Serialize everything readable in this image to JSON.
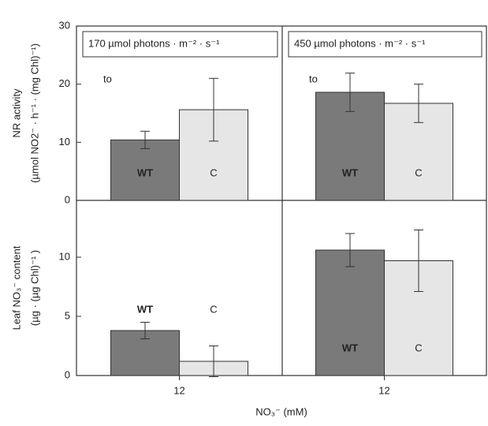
{
  "chart_data": [
    {
      "type": "bar",
      "title": "170 µmol photons · m⁻² · s⁻¹",
      "ylabel": [
        "NR activity",
        "(µmol NO2⁻ · h⁻¹ · (mg Chl)⁻¹)"
      ],
      "annotation": "to",
      "label_position": "inside",
      "categories": [
        null
      ],
      "ylim": [
        0,
        30
      ],
      "yticks": [
        0,
        10,
        20,
        30
      ],
      "series": [
        {
          "name": "WT",
          "color": "#7a7a7a",
          "values": [
            10.4
          ],
          "errors": [
            1.5
          ]
        },
        {
          "name": "C",
          "color": "#e6e6e6",
          "values": [
            15.6
          ],
          "errors": [
            5.4
          ]
        }
      ]
    },
    {
      "type": "bar",
      "title": "450 µmol photons · m⁻² · s⁻¹",
      "annotation": "to",
      "label_position": "inside",
      "categories": [
        null
      ],
      "ylim": [
        0,
        30
      ],
      "series": [
        {
          "name": "WT",
          "color": "#7a7a7a",
          "values": [
            18.6
          ],
          "errors": [
            3.3
          ]
        },
        {
          "name": "C",
          "color": "#e6e6e6",
          "values": [
            16.7
          ],
          "errors": [
            3.3
          ]
        }
      ]
    },
    {
      "type": "bar",
      "ylabel": [
        "Leaf NO₃⁻ content",
        "(µg · (µg Chl)⁻¹ )"
      ],
      "xlabel": "NO₃⁻  (mM)",
      "label_position": "above",
      "categories": [
        "12"
      ],
      "ylim": [
        0,
        14.8
      ],
      "yticks": [
        0,
        5,
        10
      ],
      "series": [
        {
          "name": "WT",
          "color": "#7a7a7a",
          "values": [
            3.8
          ],
          "errors": [
            0.7
          ]
        },
        {
          "name": "C",
          "color": "#e6e6e6",
          "values": [
            1.2
          ],
          "errors": [
            1.3
          ]
        }
      ]
    },
    {
      "type": "bar",
      "label_position": "inside",
      "categories": [
        "12"
      ],
      "ylim": [
        0,
        14.8
      ],
      "series": [
        {
          "name": "WT",
          "color": "#7a7a7a",
          "values": [
            10.6
          ],
          "errors": [
            1.4
          ]
        },
        {
          "name": "C",
          "color": "#e6e6e6",
          "values": [
            9.7
          ],
          "errors": [
            2.6
          ]
        }
      ]
    }
  ]
}
